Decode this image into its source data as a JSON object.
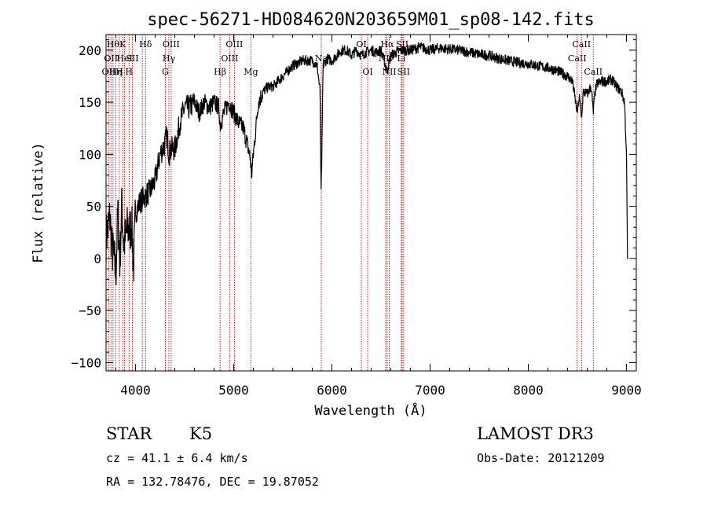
{
  "chart_data": {
    "type": "line",
    "title": "spec-56271-HD084620N203659M01_sp08-142.fits",
    "xlabel": "Wavelength (Å)",
    "ylabel": "Flux (relative)",
    "xlim": [
      3700,
      9100
    ],
    "ylim": [
      -108,
      215
    ],
    "xticks": [
      4000,
      5000,
      6000,
      7000,
      8000,
      9000
    ],
    "yticks": [
      -100,
      -50,
      0,
      50,
      100,
      150,
      200
    ],
    "ytick_labels": [
      "−100",
      "−50",
      "0",
      "50",
      "100",
      "150",
      "200"
    ],
    "series": [
      {
        "name": "flux",
        "x": [
          3700,
          3720,
          3740,
          3760,
          3780,
          3800,
          3820,
          3840,
          3860,
          3880,
          3900,
          3920,
          3940,
          3960,
          3980,
          4000,
          4050,
          4100,
          4150,
          4200,
          4250,
          4300,
          4320,
          4340,
          4360,
          4400,
          4450,
          4500,
          4550,
          4600,
          4650,
          4700,
          4750,
          4800,
          4850,
          4861,
          4900,
          4950,
          5000,
          5050,
          5100,
          5150,
          5170,
          5183,
          5200,
          5250,
          5300,
          5350,
          5400,
          5500,
          5600,
          5700,
          5800,
          5850,
          5880,
          5889,
          5896,
          5910,
          5950,
          6000,
          6050,
          6100,
          6150,
          6200,
          6250,
          6300,
          6350,
          6400,
          6450,
          6500,
          6563,
          6600,
          6700,
          6800,
          6900,
          7000,
          7100,
          7200,
          7300,
          7400,
          7500,
          7600,
          7700,
          7800,
          7900,
          8000,
          8100,
          8200,
          8300,
          8400,
          8450,
          8498,
          8520,
          8542,
          8560,
          8600,
          8640,
          8662,
          8680,
          8700,
          8750,
          8800,
          8850,
          8900,
          8950,
          8980,
          9000,
          9010
        ],
        "y": [
          20,
          30,
          40,
          10,
          0,
          -15,
          45,
          -5,
          50,
          15,
          20,
          30,
          25,
          35,
          -10,
          45,
          55,
          60,
          65,
          75,
          100,
          110,
          120,
          100,
          105,
          105,
          130,
          145,
          145,
          150,
          140,
          150,
          145,
          150,
          145,
          128,
          140,
          150,
          140,
          130,
          125,
          105,
          95,
          80,
          100,
          150,
          160,
          165,
          165,
          175,
          185,
          190,
          190,
          185,
          160,
          60,
          90,
          185,
          192,
          190,
          195,
          200,
          200,
          195,
          200,
          195,
          198,
          200,
          198,
          200,
          180,
          195,
          200,
          200,
          203,
          200,
          202,
          201,
          200,
          198,
          196,
          195,
          192,
          190,
          188,
          187,
          185,
          183,
          180,
          175,
          170,
          140,
          155,
          135,
          160,
          158,
          165,
          140,
          160,
          168,
          170,
          170,
          172,
          165,
          160,
          150,
          100,
          0
        ]
      }
    ],
    "reference_lines": [
      {
        "x": 3727,
        "label": "OII",
        "row": 2
      },
      {
        "x": 3750,
        "label": "OII",
        "row": 1
      },
      {
        "x": 3771,
        "label": "Hθ",
        "row": 0
      },
      {
        "x": 3798,
        "label": "Hη",
        "row": 2
      },
      {
        "x": 3835,
        "label": "H",
        "row": 2
      },
      {
        "x": 3869,
        "label": "K",
        "row": 0
      },
      {
        "x": 3889,
        "label": "HeI",
        "row": 1
      },
      {
        "x": 3934,
        "label": "H",
        "row": 2
      },
      {
        "x": 3968,
        "label": "SII",
        "row": 1
      },
      {
        "x": 4069,
        "label": "",
        "row": 0
      },
      {
        "x": 4102,
        "label": "Hδ",
        "row": 0
      },
      {
        "x": 4304,
        "label": "G",
        "row": 2
      },
      {
        "x": 4340,
        "label": "Hγ",
        "row": 1
      },
      {
        "x": 4363,
        "label": "OIII",
        "row": 0
      },
      {
        "x": 4861,
        "label": "Hβ",
        "row": 2
      },
      {
        "x": 4959,
        "label": "OIII",
        "row": 1
      },
      {
        "x": 5007,
        "label": "OIII",
        "row": 0
      },
      {
        "x": 5175,
        "label": "Mg",
        "row": 2
      },
      {
        "x": 5892,
        "label": "Na",
        "row": 1
      },
      {
        "x": 6300,
        "label": "OI",
        "row": 0
      },
      {
        "x": 6364,
        "label": "OI",
        "row": 2
      },
      {
        "x": 6548,
        "label": "NII",
        "row": 1
      },
      {
        "x": 6563,
        "label": "Hα",
        "row": 0
      },
      {
        "x": 6584,
        "label": "NII",
        "row": 2
      },
      {
        "x": 6707,
        "label": "Li",
        "row": 1
      },
      {
        "x": 6716,
        "label": "SII",
        "row": 0
      },
      {
        "x": 6731,
        "label": "SII",
        "row": 2
      },
      {
        "x": 8498,
        "label": "CaII",
        "row": 1
      },
      {
        "x": 8542,
        "label": "CaII",
        "row": 0
      },
      {
        "x": 8662,
        "label": "CaII",
        "row": 2
      }
    ]
  },
  "info": {
    "object_type": "STAR",
    "subclass": "K5",
    "redshift": "cz = 41.1 ± 6.4 km/s",
    "coordinates": "RA = 132.78476, DEC =  19.87052",
    "survey": "LAMOST DR3",
    "obs_date": "Obs-Date: 20121209"
  }
}
